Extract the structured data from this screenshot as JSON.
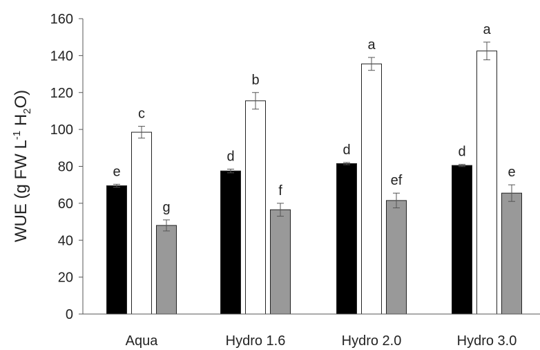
{
  "chart_data": {
    "type": "bar",
    "title": "",
    "xlabel": "",
    "ylabel": {
      "text_before_sup": "WUE (g FW L",
      "sup": "-1",
      "text_mid": " H",
      "sub": "2",
      "text_after": "O)"
    },
    "ylim": [
      0,
      160
    ],
    "yticks": [
      0,
      20,
      40,
      60,
      80,
      100,
      120,
      140,
      160
    ],
    "categories": [
      "Aqua",
      "Hydro 1.6",
      "Hydro 2.0",
      "Hydro 3.0"
    ],
    "series": [
      {
        "color": "#000000",
        "values": [
          69.5,
          77.5,
          81.5,
          80.5
        ],
        "errors": [
          0.8,
          1.0,
          0.6,
          0.6
        ],
        "letters": [
          "e",
          "d",
          "d",
          "d"
        ]
      },
      {
        "color": "#ffffff",
        "values": [
          98.5,
          115.5,
          135.5,
          142.5
        ],
        "errors": [
          3.2,
          4.5,
          3.5,
          4.8
        ],
        "letters": [
          "c",
          "b",
          "a",
          "a"
        ]
      },
      {
        "color": "#999999",
        "values": [
          48.0,
          56.5,
          61.5,
          65.5
        ],
        "errors": [
          3.0,
          3.5,
          4.0,
          4.5
        ],
        "letters": [
          "g",
          "f",
          "ef",
          "e"
        ]
      }
    ],
    "grid": false,
    "legend": "none"
  }
}
